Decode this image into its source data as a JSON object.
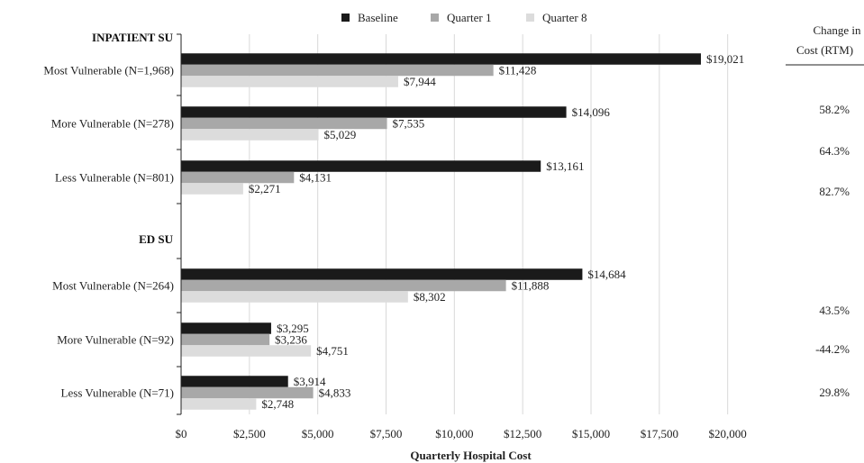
{
  "chart_data": {
    "type": "bar",
    "orientation": "horizontal",
    "xlabel": "Quarterly Hospital Cost",
    "xlim": [
      0,
      21000
    ],
    "x_ticks": [
      0,
      2500,
      5000,
      7500,
      10000,
      12500,
      15000,
      17500,
      20000
    ],
    "x_tick_labels": [
      "$0",
      "$2,500",
      "$5,000",
      "$7,500",
      "$10,000",
      "$12,500",
      "$15,000",
      "$17,500",
      "$20,000"
    ],
    "grid": "vertical",
    "legend_position": "top",
    "series": [
      {
        "name": "Baseline",
        "color": "#1a1a1a"
      },
      {
        "name": "Quarter 1",
        "color": "#a8a8a8"
      },
      {
        "name": "Quarter 8",
        "color": "#dcdcdc"
      }
    ],
    "groups": [
      {
        "heading": "INPATIENT SU",
        "categories": [
          {
            "label": "Most Vulnerable (N=1,968)",
            "values": [
              19021,
              11428,
              7944
            ],
            "value_labels": [
              "$19,021",
              "$11,428",
              "$7,944"
            ]
          },
          {
            "label": "More Vulnerable (N=278)",
            "values": [
              14096,
              7535,
              5029
            ],
            "value_labels": [
              "$14,096",
              "$7,535",
              "$5,029"
            ]
          },
          {
            "label": "Less Vulnerable (N=801)",
            "values": [
              13161,
              4131,
              2271
            ],
            "value_labels": [
              "$13,161",
              "$4,131",
              "$2,271"
            ]
          }
        ]
      },
      {
        "heading": "ED SU",
        "categories": [
          {
            "label": "Most Vulnerable (N=264)",
            "values": [
              14684,
              11888,
              8302
            ],
            "value_labels": [
              "$14,684",
              "$11,888",
              "$8,302"
            ]
          },
          {
            "label": "More Vulnerable (N=92)",
            "values": [
              3295,
              3236,
              4751
            ],
            "value_labels": [
              "$3,295",
              "$3,236",
              "$4,751"
            ]
          },
          {
            "label": "Less Vulnerable (N=71)",
            "values": [
              3914,
              4833,
              2748
            ],
            "value_labels": [
              "$3,914",
              "$4,833",
              "$2,748"
            ]
          }
        ]
      }
    ],
    "side_column": {
      "header_line1": "Change in",
      "header_line2": "Cost (RTM)",
      "values": [
        "58.2%",
        "64.3%",
        "82.7%",
        "43.5%",
        "-44.2%",
        "29.8%"
      ]
    }
  }
}
